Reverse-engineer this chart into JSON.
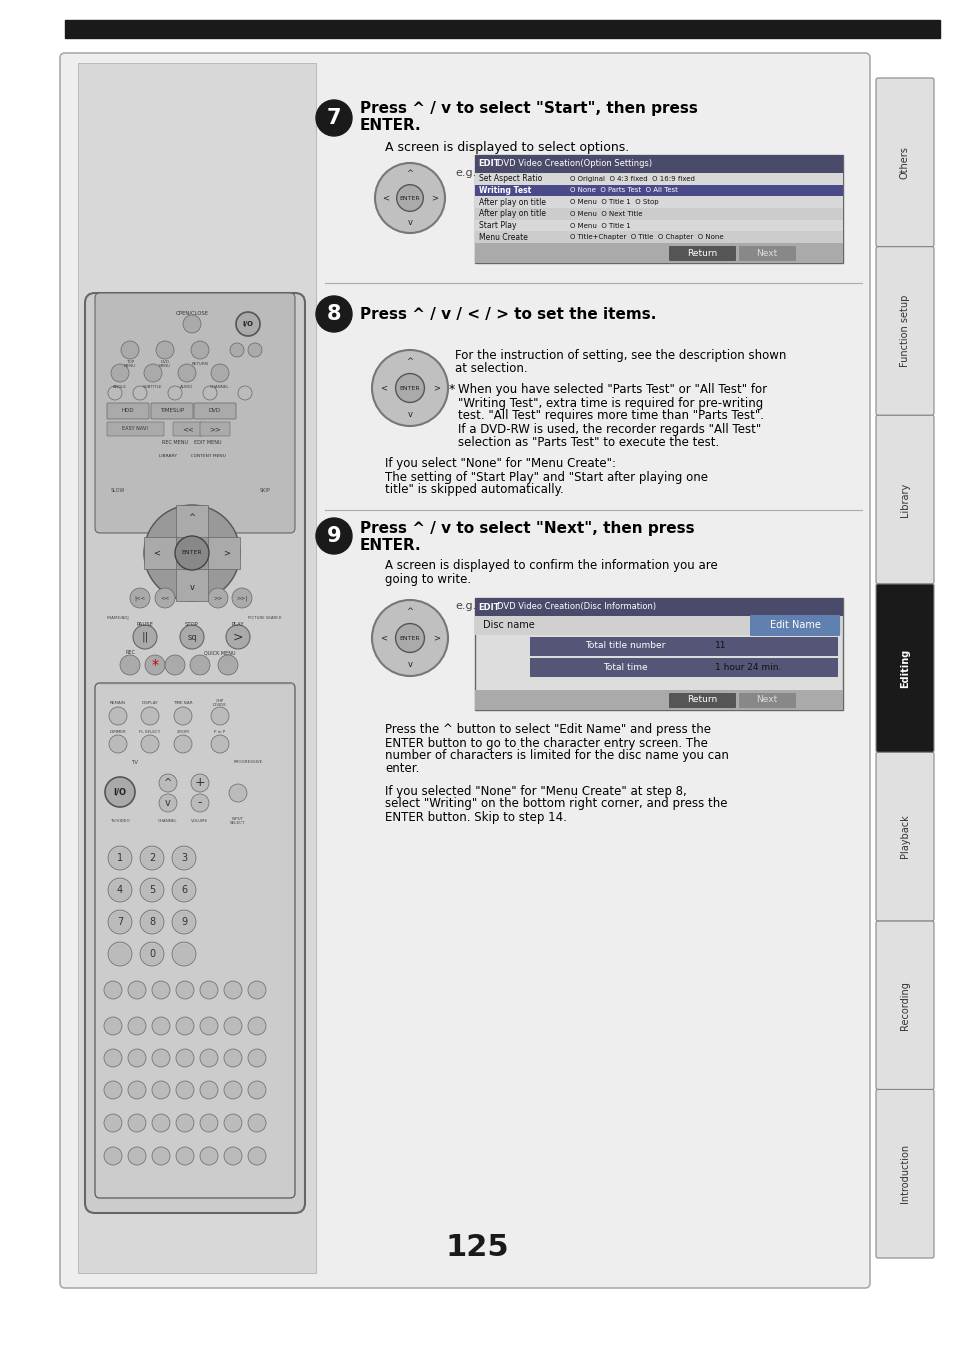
{
  "page_number": "125",
  "bg_color": "#ffffff",
  "top_bar_color": "#1a1a1a",
  "content_bg": "#e8e8e8",
  "tab_labels": [
    "Introduction",
    "Recording",
    "Playback",
    "Editing",
    "Library",
    "Function setup",
    "Others"
  ],
  "tab_active": [
    false,
    false,
    false,
    true,
    false,
    false,
    false
  ]
}
